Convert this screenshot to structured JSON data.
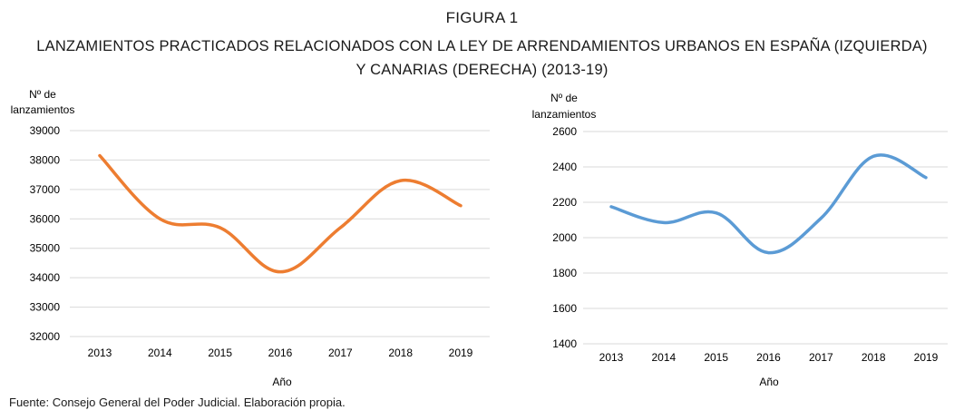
{
  "figure": {
    "label": "FIGURA 1",
    "title": "LANZAMIENTOS PRACTICADOS RELACIONADOS CON LA LEY DE ARRENDAMIENTOS URBANOS EN ESPAÑA (IZQUIERDA) Y CANARIAS (DERECHA) (2013-19)",
    "source": "Fuente: Consejo General del Poder Judicial. Elaboración propia."
  },
  "colors": {
    "spain": "#ED7D31",
    "canarias": "#5B9BD5"
  },
  "chart_data": [
    {
      "type": "line",
      "region": "España",
      "title": "",
      "xlabel": "Año",
      "ylabel_line1": "Nº de",
      "ylabel_line2": "lanzamientos",
      "categories": [
        "2013",
        "2014",
        "2015",
        "2016",
        "2017",
        "2018",
        "2019"
      ],
      "values": [
        38150,
        36000,
        35700,
        34200,
        35700,
        37300,
        36450
      ],
      "ylim": [
        32000,
        39000
      ],
      "yticks": [
        32000,
        33000,
        34000,
        35000,
        36000,
        37000,
        38000,
        39000
      ],
      "grid": true,
      "color": "#ED7D31"
    },
    {
      "type": "line",
      "region": "Canarias",
      "title": "",
      "xlabel": "Año",
      "ylabel_line1": "Nº de",
      "ylabel_line2": "lanzamientos",
      "categories": [
        "2013",
        "2014",
        "2015",
        "2016",
        "2017",
        "2018",
        "2019"
      ],
      "values": [
        2175,
        2085,
        2140,
        1915,
        2110,
        2460,
        2340
      ],
      "ylim": [
        1400,
        2600
      ],
      "yticks": [
        1400,
        1600,
        1800,
        2000,
        2200,
        2400,
        2600
      ],
      "grid": true,
      "color": "#5B9BD5"
    }
  ]
}
